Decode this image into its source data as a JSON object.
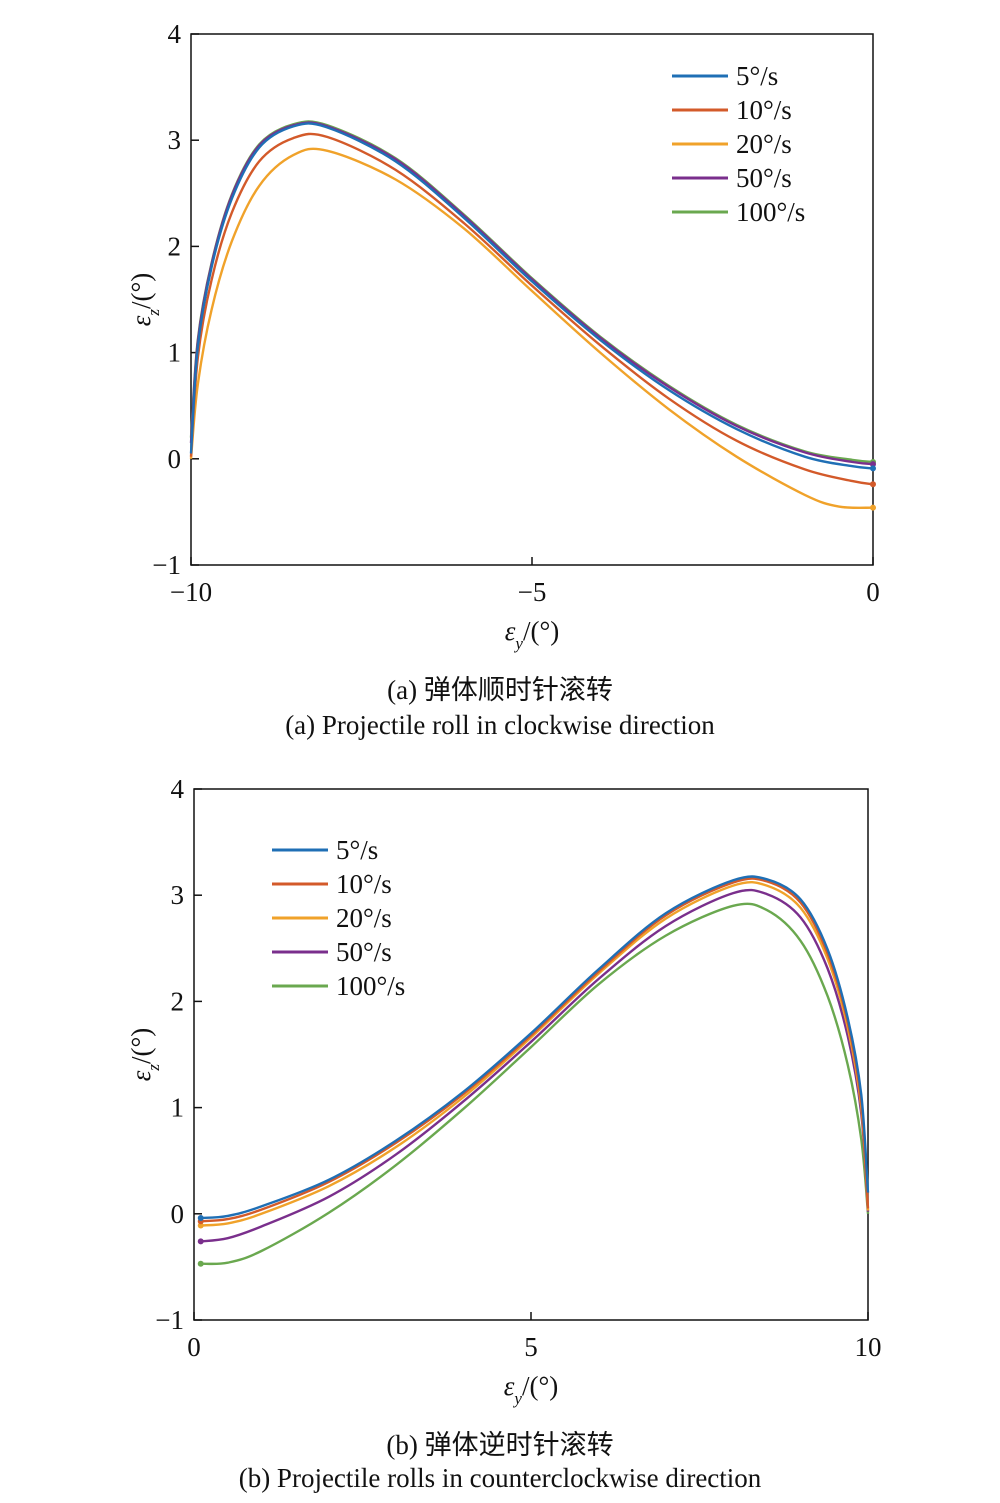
{
  "chart_data": [
    {
      "type": "line",
      "caption_cn": "(a) 弹体顺时针滚转",
      "caption_en": "(a) Projectile roll in clockwise direction",
      "xlabel": "εy/(°)",
      "ylabel": "εz/(°)",
      "xlabel_sym": "ε",
      "xlabel_sub": "y",
      "xlabel_unit": "/(°)",
      "ylabel_sym": "ε",
      "ylabel_sub": "z",
      "ylabel_unit": "/(°)",
      "xlim": [
        -10,
        0
      ],
      "ylim": [
        -1,
        4
      ],
      "xticks": [
        -10,
        -5,
        0
      ],
      "xtick_labels": [
        "−10",
        "−5",
        "0"
      ],
      "yticks": [
        -1,
        0,
        1,
        2,
        3,
        4
      ],
      "ytick_labels": [
        "−1",
        "0",
        "1",
        "2",
        "3",
        "4"
      ],
      "grid": false,
      "legend_position": "top-right",
      "series": [
        {
          "name": "5°/s",
          "color": "#1f6fb5",
          "x": [
            0,
            -0.3,
            -1,
            -2,
            -3,
            -4,
            -5,
            -6,
            -7,
            -8,
            -8.5,
            -9,
            -9.4,
            -9.7,
            -9.9,
            -10
          ],
          "y": [
            -0.09,
            -0.07,
            0.02,
            0.28,
            0.65,
            1.12,
            1.67,
            2.27,
            2.8,
            3.12,
            3.13,
            2.93,
            2.45,
            1.8,
            1.05,
            0.05
          ]
        },
        {
          "name": "10°/s",
          "color": "#d35a2a",
          "x": [
            0,
            -0.3,
            -1,
            -2,
            -3,
            -4,
            -5,
            -6,
            -7,
            -8,
            -8.5,
            -9,
            -9.4,
            -9.7,
            -9.9,
            -10
          ],
          "y": [
            -0.24,
            -0.21,
            -0.1,
            0.17,
            0.57,
            1.07,
            1.63,
            2.22,
            2.72,
            3.03,
            3.02,
            2.8,
            2.32,
            1.68,
            0.95,
            0.02
          ]
        },
        {
          "name": "20°/s",
          "color": "#f0a22a",
          "x": [
            0,
            -0.5,
            -1,
            -2,
            -3,
            -4,
            -5,
            -6,
            -7,
            -8,
            -8.5,
            -9,
            -9.4,
            -9.7,
            -9.9,
            -10
          ],
          "y": [
            -0.46,
            -0.45,
            -0.34,
            0.02,
            0.47,
            1.0,
            1.58,
            2.17,
            2.63,
            2.9,
            2.86,
            2.57,
            2.05,
            1.4,
            0.7,
            0.0
          ]
        },
        {
          "name": "50°/s",
          "color": "#7a2f8c",
          "x": [
            0,
            -0.3,
            -1,
            -2,
            -3,
            -4,
            -5,
            -6,
            -7,
            -8,
            -8.5,
            -9,
            -9.4,
            -9.7,
            -9.9,
            -10
          ],
          "y": [
            -0.05,
            -0.03,
            0.06,
            0.31,
            0.68,
            1.14,
            1.69,
            2.29,
            2.82,
            3.13,
            3.14,
            2.95,
            2.48,
            1.83,
            1.1,
            0.15
          ]
        },
        {
          "name": "100°/s",
          "color": "#6aa84f",
          "x": [
            0,
            -0.3,
            -1,
            -2,
            -3,
            -4,
            -5,
            -6,
            -7,
            -8,
            -8.5,
            -9,
            -9.4,
            -9.7,
            -9.9,
            -10
          ],
          "y": [
            -0.03,
            -0.01,
            0.07,
            0.32,
            0.69,
            1.15,
            1.7,
            2.3,
            2.83,
            3.14,
            3.15,
            2.96,
            2.49,
            1.84,
            1.12,
            0.2
          ]
        }
      ]
    },
    {
      "type": "line",
      "caption_cn": "(b) 弹体逆时针滚转",
      "caption_en": "(b) Projectile rolls in counterclockwise direction",
      "xlabel": "εy/(°)",
      "ylabel": "εz/(°)",
      "xlabel_sym": "ε",
      "xlabel_sub": "y",
      "xlabel_unit": "/(°)",
      "ylabel_sym": "ε",
      "ylabel_sub": "z",
      "ylabel_unit": "/(°)",
      "xlim": [
        0,
        10
      ],
      "ylim": [
        -1,
        4
      ],
      "xticks": [
        0,
        5,
        10
      ],
      "xtick_labels": [
        "0",
        "5",
        "10"
      ],
      "yticks": [
        -1,
        0,
        1,
        2,
        3,
        4
      ],
      "ytick_labels": [
        "−1",
        "0",
        "1",
        "2",
        "3",
        "4"
      ],
      "grid": false,
      "legend_position": "top-left",
      "series": [
        {
          "name": "5°/s",
          "color": "#1f6fb5",
          "x": [
            0.1,
            0.5,
            1,
            2,
            3,
            4,
            5,
            6,
            7,
            8,
            8.5,
            9,
            9.4,
            9.7,
            9.9,
            10
          ],
          "y": [
            -0.04,
            -0.02,
            0.07,
            0.32,
            0.69,
            1.15,
            1.7,
            2.3,
            2.83,
            3.14,
            3.15,
            2.96,
            2.49,
            1.84,
            1.12,
            0.2
          ]
        },
        {
          "name": "10°/s",
          "color": "#d35a2a",
          "x": [
            0.1,
            0.5,
            1,
            2,
            3,
            4,
            5,
            6,
            7,
            8,
            8.5,
            9,
            9.4,
            9.7,
            9.9,
            10
          ],
          "y": [
            -0.07,
            -0.05,
            0.04,
            0.3,
            0.67,
            1.13,
            1.68,
            2.28,
            2.81,
            3.12,
            3.13,
            2.93,
            2.45,
            1.8,
            1.05,
            0.05
          ]
        },
        {
          "name": "20°/s",
          "color": "#f0a22a",
          "x": [
            0.1,
            0.5,
            1,
            2,
            3,
            4,
            5,
            6,
            7,
            8,
            8.5,
            9,
            9.4,
            9.7,
            9.9,
            10
          ],
          "y": [
            -0.11,
            -0.09,
            0.0,
            0.26,
            0.63,
            1.1,
            1.66,
            2.26,
            2.78,
            3.09,
            3.09,
            2.88,
            2.4,
            1.75,
            1.0,
            0.03
          ]
        },
        {
          "name": "50°/s",
          "color": "#7a2f8c",
          "x": [
            0.1,
            0.5,
            1,
            2,
            3,
            4,
            5,
            6,
            7,
            8,
            8.5,
            9,
            9.4,
            9.7,
            9.9,
            10
          ],
          "y": [
            -0.26,
            -0.23,
            -0.12,
            0.16,
            0.56,
            1.06,
            1.62,
            2.21,
            2.71,
            3.02,
            3.01,
            2.79,
            2.31,
            1.67,
            0.94,
            0.02
          ]
        },
        {
          "name": "100°/s",
          "color": "#6aa84f",
          "x": [
            0.1,
            0.5,
            1,
            2,
            3,
            4,
            5,
            6,
            7,
            8,
            8.5,
            9,
            9.4,
            9.7,
            9.9,
            10
          ],
          "y": [
            -0.47,
            -0.46,
            -0.35,
            0.01,
            0.46,
            0.99,
            1.57,
            2.16,
            2.62,
            2.9,
            2.86,
            2.57,
            2.05,
            1.4,
            0.7,
            0.0
          ]
        }
      ]
    }
  ]
}
